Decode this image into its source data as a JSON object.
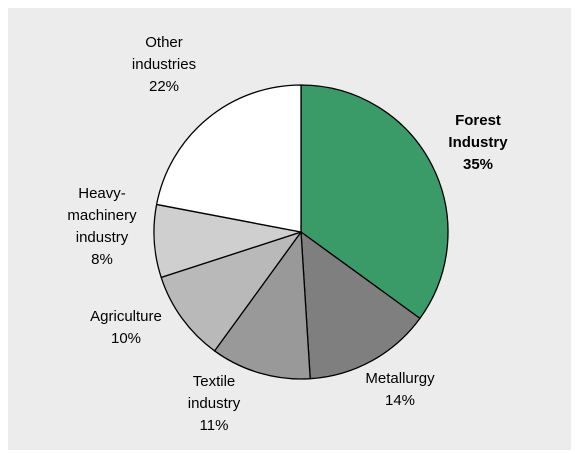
{
  "chart_data": {
    "type": "pie",
    "start_angle_deg": 0,
    "direction": "clockwise",
    "outline_color": "#000000",
    "slices": [
      {
        "label": [
          "Forest",
          "Industry",
          "35%"
        ],
        "value": 35,
        "color": "#3a9b68",
        "highlight": true
      },
      {
        "label": [
          "Metallurgy",
          "14%"
        ],
        "value": 14,
        "color": "#7f7f7f",
        "highlight": false
      },
      {
        "label": [
          "Textile",
          "industry",
          "11%"
        ],
        "value": 11,
        "color": "#999999",
        "highlight": false
      },
      {
        "label": [
          "Agriculture",
          "10%"
        ],
        "value": 10,
        "color": "#b9b9b9",
        "highlight": false
      },
      {
        "label": [
          "Heavy-",
          "machinery",
          "industry",
          "8%"
        ],
        "value": 8,
        "color": "#cfcfcf",
        "highlight": false
      },
      {
        "label": [
          "Other",
          "industries",
          "22%"
        ],
        "value": 22,
        "color": "#ffffff",
        "highlight": false
      }
    ]
  }
}
